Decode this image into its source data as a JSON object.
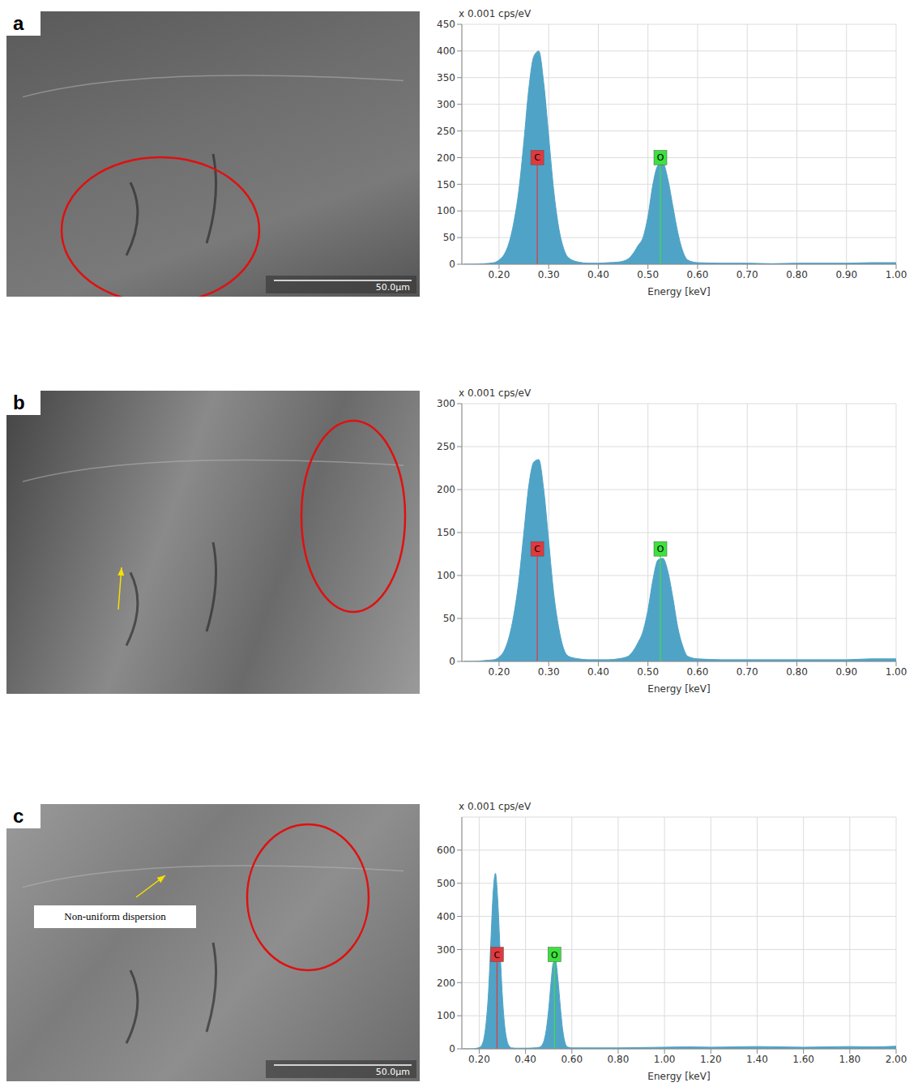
{
  "images": [
    {
      "panel": "a",
      "scale_bar": "50.0µm"
    },
    {
      "panel": "b"
    },
    {
      "panel": "c",
      "scale_bar": "50.0µm",
      "annotation": "Non-uniform dispersion"
    }
  ],
  "chart_data": [
    {
      "type": "area",
      "panel": "a",
      "y_label": "x 0.001 cps/eV",
      "x_label": "Energy [keV]",
      "color": "#4fa3c7",
      "grid": true,
      "xlim": [
        0.125,
        1.0
      ],
      "xticks": [
        {
          "value": 0.2,
          "label": "0.20"
        },
        {
          "value": 0.3,
          "label": "0.30"
        },
        {
          "value": 0.4,
          "label": "0.40"
        },
        {
          "value": 0.5,
          "label": "0.50"
        },
        {
          "value": 0.6,
          "label": "0.60"
        },
        {
          "value": 0.7,
          "label": "0.70"
        },
        {
          "value": 0.8,
          "label": "0.80"
        },
        {
          "value": 0.9,
          "label": "0.90"
        },
        {
          "value": 1.0,
          "label": "1.00"
        }
      ],
      "ylim": [
        0,
        450
      ],
      "yticks": [
        0,
        50,
        100,
        150,
        200,
        250,
        300,
        350,
        400,
        450
      ],
      "x": [
        0.13,
        0.15,
        0.17,
        0.19,
        0.2,
        0.21,
        0.22,
        0.23,
        0.24,
        0.25,
        0.26,
        0.27,
        0.28,
        0.29,
        0.3,
        0.31,
        0.32,
        0.33,
        0.34,
        0.36,
        0.38,
        0.4,
        0.42,
        0.44,
        0.46,
        0.47,
        0.48,
        0.49,
        0.5,
        0.51,
        0.52,
        0.53,
        0.54,
        0.55,
        0.56,
        0.57,
        0.58,
        0.6,
        0.65,
        0.7,
        0.75,
        0.8,
        0.85,
        0.9,
        0.95,
        1.0
      ],
      "values": [
        0,
        0,
        1,
        3,
        8,
        18,
        40,
        80,
        140,
        230,
        330,
        390,
        400,
        340,
        240,
        140,
        70,
        30,
        12,
        4,
        2,
        2,
        3,
        4,
        10,
        20,
        35,
        50,
        90,
        150,
        185,
        190,
        160,
        110,
        60,
        25,
        8,
        3,
        2,
        2,
        1,
        2,
        2,
        2,
        3,
        3
      ],
      "annotations": [
        {
          "text": "C",
          "x": 0.277,
          "y": 200,
          "color": "#e0393e"
        },
        {
          "text": "O",
          "x": 0.525,
          "y": 200,
          "color": "#3ee03e"
        }
      ]
    },
    {
      "type": "area",
      "panel": "b",
      "y_label": "x 0.001 cps/eV",
      "x_label": "Energy [keV]",
      "color": "#4fa3c7",
      "grid": true,
      "xlim": [
        0.125,
        1.0
      ],
      "xticks": [
        {
          "value": 0.2,
          "label": "0.20"
        },
        {
          "value": 0.3,
          "label": "0.30"
        },
        {
          "value": 0.4,
          "label": "0.40"
        },
        {
          "value": 0.5,
          "label": "0.50"
        },
        {
          "value": 0.6,
          "label": "0.60"
        },
        {
          "value": 0.7,
          "label": "0.70"
        },
        {
          "value": 0.8,
          "label": "0.80"
        },
        {
          "value": 0.9,
          "label": "0.90"
        },
        {
          "value": 1.0,
          "label": "1.00"
        }
      ],
      "ylim": [
        0,
        300
      ],
      "yticks": [
        0,
        50,
        100,
        150,
        200,
        250,
        300
      ],
      "x": [
        0.13,
        0.15,
        0.17,
        0.19,
        0.2,
        0.21,
        0.22,
        0.23,
        0.24,
        0.25,
        0.26,
        0.27,
        0.28,
        0.29,
        0.3,
        0.31,
        0.32,
        0.33,
        0.34,
        0.36,
        0.38,
        0.4,
        0.42,
        0.44,
        0.46,
        0.47,
        0.48,
        0.49,
        0.5,
        0.51,
        0.52,
        0.53,
        0.54,
        0.55,
        0.56,
        0.57,
        0.58,
        0.6,
        0.65,
        0.7,
        0.75,
        0.8,
        0.85,
        0.9,
        0.95,
        1.0
      ],
      "values": [
        0,
        0,
        1,
        2,
        5,
        12,
        28,
        55,
        95,
        150,
        205,
        232,
        235,
        200,
        140,
        80,
        40,
        15,
        6,
        3,
        2,
        2,
        2,
        3,
        6,
        12,
        22,
        35,
        60,
        95,
        118,
        120,
        105,
        75,
        40,
        18,
        6,
        3,
        2,
        2,
        2,
        2,
        2,
        2,
        3,
        3
      ],
      "annotations": [
        {
          "text": "C",
          "x": 0.277,
          "y": 131,
          "color": "#e0393e"
        },
        {
          "text": "O",
          "x": 0.525,
          "y": 131,
          "color": "#3ee03e"
        }
      ]
    },
    {
      "type": "area",
      "panel": "c",
      "y_label": "x 0.001 cps/eV",
      "x_label": "Energy [keV]",
      "color": "#4fa3c7",
      "grid": true,
      "xlim": [
        0.125,
        2.0
      ],
      "xticks": [
        {
          "value": 0.2,
          "label": "0.20"
        },
        {
          "value": 0.4,
          "label": "0.40"
        },
        {
          "value": 0.6,
          "label": "0.60"
        },
        {
          "value": 0.8,
          "label": "0.80"
        },
        {
          "value": 1.0,
          "label": "1.00"
        },
        {
          "value": 1.2,
          "label": "1.20"
        },
        {
          "value": 1.4,
          "label": "1.40"
        },
        {
          "value": 1.6,
          "label": "1.60"
        },
        {
          "value": 1.8,
          "label": "1.80"
        },
        {
          "value": 2.0,
          "label": "2.00"
        }
      ],
      "ylim": [
        0,
        700
      ],
      "yticks": [
        0,
        100,
        200,
        300,
        400,
        500,
        600
      ],
      "x": [
        0.13,
        0.15,
        0.17,
        0.19,
        0.2,
        0.21,
        0.22,
        0.23,
        0.24,
        0.25,
        0.26,
        0.27,
        0.28,
        0.29,
        0.3,
        0.31,
        0.32,
        0.33,
        0.34,
        0.36,
        0.4,
        0.44,
        0.46,
        0.47,
        0.48,
        0.49,
        0.5,
        0.51,
        0.52,
        0.53,
        0.54,
        0.55,
        0.56,
        0.57,
        0.58,
        0.6,
        0.7,
        0.8,
        0.9,
        1.0,
        1.1,
        1.2,
        1.3,
        1.4,
        1.5,
        1.6,
        1.7,
        1.8,
        1.9,
        2.0
      ],
      "values": [
        0,
        0,
        0,
        2,
        4,
        10,
        30,
        80,
        170,
        320,
        470,
        530,
        450,
        300,
        160,
        70,
        25,
        8,
        3,
        2,
        2,
        3,
        5,
        10,
        25,
        60,
        120,
        200,
        260,
        265,
        210,
        130,
        60,
        20,
        6,
        3,
        3,
        3,
        4,
        5,
        6,
        5,
        6,
        7,
        6,
        5,
        6,
        7,
        6,
        8
      ],
      "annotations": [
        {
          "text": "C",
          "x": 0.277,
          "y": 285,
          "color": "#e0393e"
        },
        {
          "text": "O",
          "x": 0.525,
          "y": 285,
          "color": "#3ee03e"
        }
      ]
    }
  ]
}
